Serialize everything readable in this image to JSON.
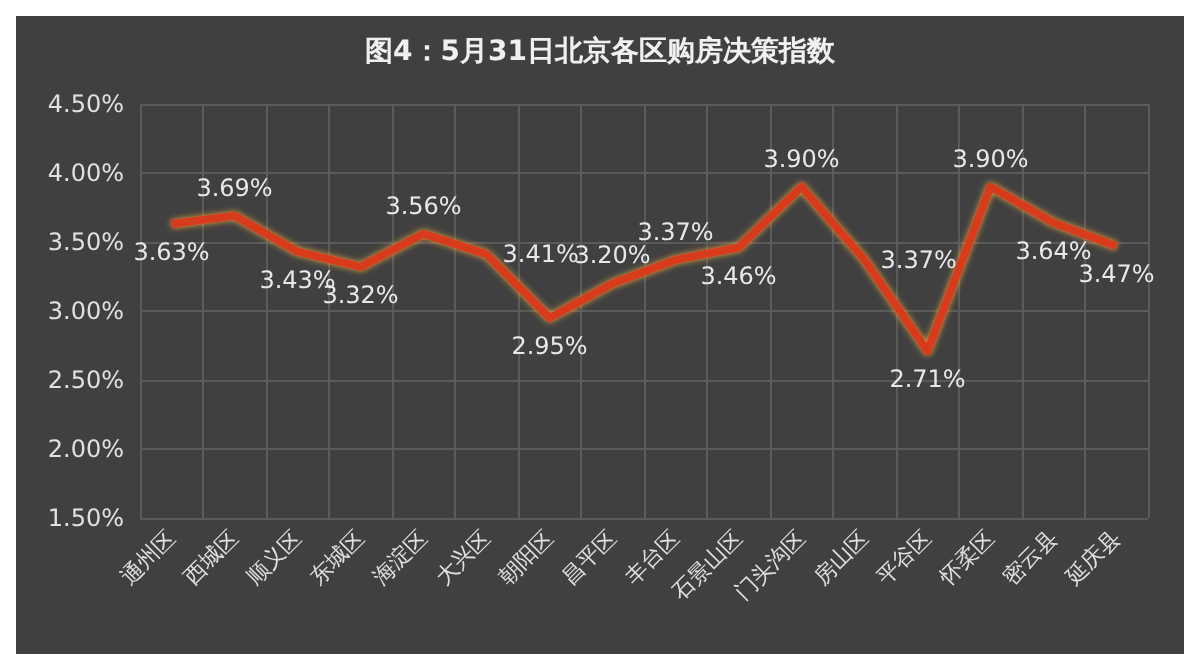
{
  "chart_data": {
    "type": "line",
    "title": "图4：5月31日北京各区购房决策指数",
    "categories": [
      "通州区",
      "西城区",
      "顺义区",
      "东城区",
      "海淀区",
      "大兴区",
      "朝阳区",
      "昌平区",
      "丰台区",
      "石景山区",
      "门头沟区",
      "房山区",
      "平谷区",
      "怀柔区",
      "密云县",
      "延庆县"
    ],
    "series": [
      {
        "color": "#d83a1c",
        "values": [
          3.63,
          3.69,
          3.43,
          3.32,
          3.56,
          3.41,
          2.95,
          3.2,
          3.37,
          3.46,
          3.9,
          3.37,
          2.71,
          3.9,
          3.64,
          3.47
        ],
        "value_labels": [
          "3.63%",
          "3.69%",
          "3.43%",
          "3.32%",
          "3.56%",
          "3.41%",
          "2.95%",
          "3.20%",
          "3.37%",
          "3.46%",
          "3.90%",
          "3.37%",
          "2.71%",
          "3.90%",
          "3.64%",
          "3.47%"
        ]
      }
    ],
    "ylim": [
      1.5,
      4.5
    ],
    "yticks": [
      {
        "value": 1.5,
        "label": "1.50%"
      },
      {
        "value": 2,
        "label": "2.00%"
      },
      {
        "value": 2.5,
        "label": "2.50%"
      },
      {
        "value": 3,
        "label": "3.00%"
      },
      {
        "value": 3.5,
        "label": "3.50%"
      },
      {
        "value": 4,
        "label": "4.00%"
      },
      {
        "value": 4.5,
        "label": "4.50%"
      }
    ],
    "grid": true,
    "marker": "none",
    "line_style": "solid"
  }
}
